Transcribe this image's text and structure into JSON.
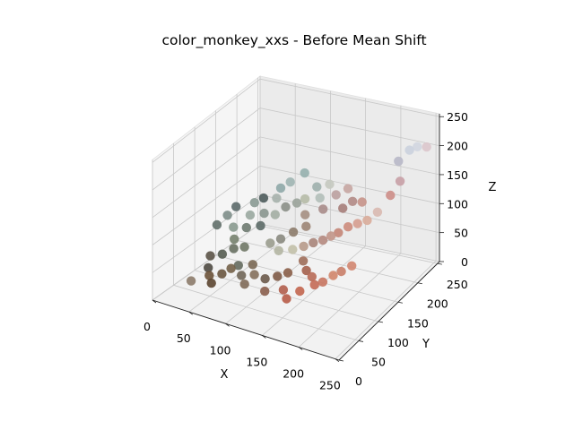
{
  "chart_data": {
    "type": "scatter",
    "title": "color_monkey_xxs - Before Mean Shift",
    "xlabel": "X",
    "ylabel": "Y",
    "zlabel": "Z",
    "xlim": [
      0,
      255
    ],
    "ylim": [
      0,
      255
    ],
    "zlim": [
      0,
      255
    ],
    "xticks": [
      "0",
      "50",
      "100",
      "150",
      "200",
      "250"
    ],
    "yticks": [
      "0",
      "50",
      "100",
      "150",
      "200",
      "250"
    ],
    "zticks": [
      "0",
      "50",
      "100",
      "150",
      "200",
      "250"
    ],
    "grid": true,
    "points": [
      {
        "x": 30,
        "y": 40,
        "z": 25,
        "color": "#8c7b6a"
      },
      {
        "x": 55,
        "y": 45,
        "z": 28,
        "color": "#5b4530"
      },
      {
        "x": 48,
        "y": 52,
        "z": 35,
        "color": "#6b5238"
      },
      {
        "x": 62,
        "y": 58,
        "z": 40,
        "color": "#6a5640"
      },
      {
        "x": 70,
        "y": 66,
        "z": 48,
        "color": "#736048"
      },
      {
        "x": 42,
        "y": 60,
        "z": 42,
        "color": "#4f4a42"
      },
      {
        "x": 38,
        "y": 72,
        "z": 55,
        "color": "#5c5448"
      },
      {
        "x": 50,
        "y": 80,
        "z": 58,
        "color": "#565d52"
      },
      {
        "x": 60,
        "y": 90,
        "z": 66,
        "color": "#687062"
      },
      {
        "x": 72,
        "y": 95,
        "z": 70,
        "color": "#707866"
      },
      {
        "x": 55,
        "y": 100,
        "z": 75,
        "color": "#77826f"
      },
      {
        "x": 48,
        "y": 110,
        "z": 88,
        "color": "#8a9a8f"
      },
      {
        "x": 65,
        "y": 112,
        "z": 92,
        "color": "#6e7a70"
      },
      {
        "x": 80,
        "y": 120,
        "z": 96,
        "color": "#5d6b68"
      },
      {
        "x": 62,
        "y": 126,
        "z": 105,
        "color": "#9aa8a0"
      },
      {
        "x": 78,
        "y": 132,
        "z": 110,
        "color": "#89968f"
      },
      {
        "x": 90,
        "y": 138,
        "z": 108,
        "color": "#a3aea3"
      },
      {
        "x": 100,
        "y": 146,
        "z": 120,
        "color": "#8c9088"
      },
      {
        "x": 85,
        "y": 150,
        "z": 128,
        "color": "#a6b1ac"
      },
      {
        "x": 110,
        "y": 156,
        "z": 124,
        "color": "#9aa39a"
      },
      {
        "x": 118,
        "y": 162,
        "z": 130,
        "color": "#b6bba7"
      },
      {
        "x": 125,
        "y": 150,
        "z": 112,
        "color": "#a58f82"
      },
      {
        "x": 132,
        "y": 140,
        "z": 100,
        "color": "#9c8576"
      },
      {
        "x": 120,
        "y": 130,
        "z": 92,
        "color": "#8d7c6c"
      },
      {
        "x": 108,
        "y": 120,
        "z": 82,
        "color": "#8a8a80"
      },
      {
        "x": 98,
        "y": 112,
        "z": 76,
        "color": "#9a9c8e"
      },
      {
        "x": 112,
        "y": 108,
        "z": 70,
        "color": "#b3b5a2"
      },
      {
        "x": 128,
        "y": 114,
        "z": 74,
        "color": "#c2c0a8"
      },
      {
        "x": 140,
        "y": 120,
        "z": 80,
        "color": "#b79a8a"
      },
      {
        "x": 150,
        "y": 126,
        "z": 86,
        "color": "#a8857a"
      },
      {
        "x": 160,
        "y": 132,
        "z": 90,
        "color": "#b58a80"
      },
      {
        "x": 168,
        "y": 138,
        "z": 96,
        "color": "#c2968a"
      },
      {
        "x": 176,
        "y": 142,
        "z": 102,
        "color": "#c48678"
      },
      {
        "x": 185,
        "y": 150,
        "z": 110,
        "color": "#cd8c7c"
      },
      {
        "x": 195,
        "y": 156,
        "z": 115,
        "color": "#d69d8f"
      },
      {
        "x": 205,
        "y": 162,
        "z": 120,
        "color": "#d9ac9a"
      },
      {
        "x": 215,
        "y": 170,
        "z": 132,
        "color": "#d9b9b0"
      },
      {
        "x": 145,
        "y": 110,
        "z": 62,
        "color": "#9e6e5a"
      },
      {
        "x": 155,
        "y": 100,
        "z": 55,
        "color": "#a4604c"
      },
      {
        "x": 165,
        "y": 96,
        "z": 50,
        "color": "#b86a56"
      },
      {
        "x": 172,
        "y": 90,
        "z": 42,
        "color": "#c46a55"
      },
      {
        "x": 180,
        "y": 96,
        "z": 46,
        "color": "#c87560"
      },
      {
        "x": 190,
        "y": 104,
        "z": 56,
        "color": "#d2866c"
      },
      {
        "x": 198,
        "y": 110,
        "z": 62,
        "color": "#c97e68"
      },
      {
        "x": 208,
        "y": 118,
        "z": 70,
        "color": "#d28670"
      },
      {
        "x": 135,
        "y": 90,
        "z": 50,
        "color": "#8a5e48"
      },
      {
        "x": 125,
        "y": 82,
        "z": 45,
        "color": "#7e5a46"
      },
      {
        "x": 112,
        "y": 75,
        "z": 40,
        "color": "#6b5a4b"
      },
      {
        "x": 100,
        "y": 70,
        "z": 46,
        "color": "#85705c"
      },
      {
        "x": 92,
        "y": 80,
        "z": 55,
        "color": "#7a6854"
      },
      {
        "x": 150,
        "y": 150,
        "z": 130,
        "color": "#a88c8a"
      },
      {
        "x": 140,
        "y": 160,
        "z": 140,
        "color": "#b3bfb9"
      },
      {
        "x": 130,
        "y": 170,
        "z": 150,
        "color": "#9eb0ad"
      },
      {
        "x": 145,
        "y": 175,
        "z": 156,
        "color": "#c5c9c0"
      },
      {
        "x": 158,
        "y": 168,
        "z": 146,
        "color": "#bba1a0"
      },
      {
        "x": 172,
        "y": 160,
        "z": 132,
        "color": "#a67e7a"
      },
      {
        "x": 180,
        "y": 170,
        "z": 140,
        "color": "#b28b86"
      },
      {
        "x": 168,
        "y": 180,
        "z": 152,
        "color": "#c6a6a2"
      },
      {
        "x": 190,
        "y": 176,
        "z": 138,
        "color": "#c79389"
      },
      {
        "x": 225,
        "y": 205,
        "z": 200,
        "color": "#b8b8c8"
      },
      {
        "x": 235,
        "y": 215,
        "z": 215,
        "color": "#cbd2de"
      },
      {
        "x": 242,
        "y": 222,
        "z": 218,
        "color": "#d2d6e0"
      },
      {
        "x": 248,
        "y": 235,
        "z": 210,
        "color": "#dcc6cc"
      },
      {
        "x": 230,
        "y": 200,
        "z": 170,
        "color": "#c8a0a6"
      },
      {
        "x": 222,
        "y": 190,
        "z": 150,
        "color": "#cd8e88"
      },
      {
        "x": 85,
        "y": 160,
        "z": 140,
        "color": "#8fa8a8"
      },
      {
        "x": 95,
        "y": 166,
        "z": 150,
        "color": "#a0b5b3"
      },
      {
        "x": 110,
        "y": 175,
        "z": 165,
        "color": "#96b0ae"
      },
      {
        "x": 60,
        "y": 140,
        "z": 118,
        "color": "#8a9a94"
      },
      {
        "x": 40,
        "y": 130,
        "z": 110,
        "color": "#5c6a6a"
      },
      {
        "x": 35,
        "y": 118,
        "z": 100,
        "color": "#7e8e8a"
      },
      {
        "x": 28,
        "y": 105,
        "z": 88,
        "color": "#62706a"
      },
      {
        "x": 68,
        "y": 148,
        "z": 124,
        "color": "#4e5c5c"
      },
      {
        "x": 75,
        "y": 75,
        "z": 50,
        "color": "#646a5e"
      },
      {
        "x": 85,
        "y": 65,
        "z": 42,
        "color": "#706658"
      },
      {
        "x": 95,
        "y": 55,
        "z": 36,
        "color": "#7f6a58"
      },
      {
        "x": 120,
        "y": 60,
        "z": 30,
        "color": "#8b5f4e"
      },
      {
        "x": 140,
        "y": 70,
        "z": 34,
        "color": "#b15e4c"
      },
      {
        "x": 160,
        "y": 75,
        "z": 36,
        "color": "#c2654e"
      },
      {
        "x": 150,
        "y": 60,
        "z": 28,
        "color": "#b85c48"
      }
    ]
  }
}
